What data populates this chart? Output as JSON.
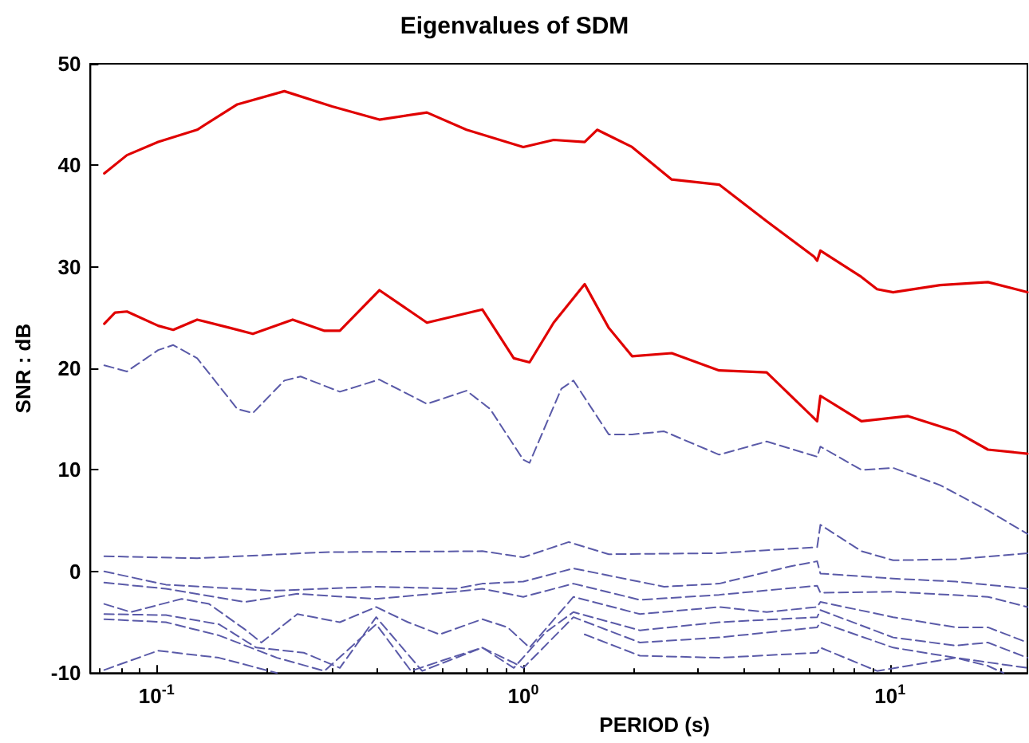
{
  "chart_data": {
    "type": "line",
    "title": "Eigenvalues of SDM",
    "xlabel": "PERIOD (s)",
    "ylabel": "SNR : dB",
    "log": "x",
    "xlim": [
      0.066,
      23.7
    ],
    "xticks": [
      {
        "value": 0.1,
        "label": "10$^{-1}$"
      },
      {
        "value": 1,
        "label": "10$^{0}$"
      },
      {
        "value": 10,
        "label": "10$^{1}$"
      }
    ],
    "ylim": [
      -10,
      50
    ],
    "yticks": [
      -10,
      0,
      10,
      20,
      30,
      40,
      50
    ],
    "grid": false,
    "marker": "none",
    "series": [
      {
        "color": "#e00000",
        "line_style": "solid",
        "x": [
          0.072,
          0.083,
          0.101,
          0.129,
          0.166,
          0.223,
          0.301,
          0.405,
          0.546,
          0.7,
          1.0,
          1.21,
          1.47,
          1.59,
          1.98,
          2.54,
          3.42,
          4.61,
          6.21,
          6.33,
          6.46,
          8.36,
          9.22,
          10.2,
          13.7,
          18.5,
          23.7
        ],
        "values": [
          39.2,
          41,
          42.3,
          43.5,
          46,
          47.3,
          45.8,
          44.5,
          45.2,
          43.5,
          41.8,
          42.5,
          42.3,
          43.5,
          41.8,
          38.6,
          38.1,
          34.5,
          31,
          30.6,
          31.6,
          29,
          27.8,
          27.5,
          28.2,
          28.5,
          27.5
        ]
      },
      {
        "color": "#e00000",
        "line_style": "solid",
        "x": [
          0.072,
          0.077,
          0.083,
          0.101,
          0.111,
          0.129,
          0.158,
          0.183,
          0.235,
          0.287,
          0.316,
          0.405,
          0.546,
          0.773,
          0.942,
          1.04,
          1.21,
          1.47,
          1.71,
          1.98,
          2.54,
          3.42,
          4.61,
          6.33,
          6.46,
          8.36,
          11.2,
          15.1,
          18.5,
          23.7
        ],
        "values": [
          24.4,
          25.5,
          25.6,
          24.2,
          23.8,
          24.8,
          24,
          23.4,
          24.8,
          23.7,
          23.7,
          27.7,
          24.5,
          25.8,
          21,
          20.6,
          24.5,
          28.3,
          24,
          21.2,
          21.5,
          19.8,
          19.6,
          14.8,
          17.3,
          14.8,
          15.3,
          13.8,
          12,
          11.6
        ]
      },
      {
        "color": "#5a5aa8",
        "line_style": "dashed",
        "x": [
          0.072,
          0.083,
          0.101,
          0.111,
          0.129,
          0.166,
          0.183,
          0.223,
          0.247,
          0.316,
          0.405,
          0.546,
          0.7,
          0.812,
          1.0,
          1.04,
          1.27,
          1.37,
          1.71,
          1.98,
          2.42,
          3.42,
          4.61,
          6.33,
          6.46,
          8.36,
          10.2,
          13.7,
          18.5,
          23.7
        ],
        "values": [
          20.3,
          19.7,
          21.8,
          22.3,
          21,
          16,
          15.6,
          18.8,
          19.2,
          17.7,
          18.9,
          16.5,
          17.8,
          16,
          11,
          10.7,
          18,
          18.8,
          13.5,
          13.5,
          13.8,
          11.5,
          12.8,
          11.3,
          12.3,
          10,
          10.2,
          8.5,
          6,
          3.7
        ]
      },
      {
        "color": "#5a5aa8",
        "line_style": "dashed",
        "x": [
          0.072,
          0.129,
          0.287,
          0.773,
          1.0,
          1.33,
          1.71,
          3.42,
          6.33,
          6.46,
          8.36,
          10.2,
          15.1,
          23.7
        ],
        "values": [
          1.5,
          1.3,
          1.9,
          2.0,
          1.4,
          2.9,
          1.7,
          1.8,
          2.4,
          4.6,
          2,
          1.1,
          1.2,
          1.8
        ]
      },
      {
        "color": "#5a5aa8",
        "line_style": "dashed",
        "x": [
          0.072,
          0.106,
          0.206,
          0.397,
          0.653,
          0.773,
          1.0,
          1.37,
          2.42,
          3.42,
          5.34,
          6.33,
          6.46,
          10.2,
          15.1,
          23.7
        ],
        "values": [
          0,
          -1.3,
          -1.9,
          -1.5,
          -1.7,
          -1.2,
          -1.0,
          0.3,
          -1.5,
          -1.2,
          0.5,
          1.0,
          -0.2,
          -0.7,
          -1.0,
          -1.7
        ]
      },
      {
        "color": "#5a5aa8",
        "line_style": "dashed",
        "x": [
          0.072,
          0.106,
          0.174,
          0.242,
          0.397,
          0.653,
          0.773,
          1.0,
          1.37,
          2.08,
          3.42,
          6.33,
          6.46,
          10.2,
          18.5,
          23.7
        ],
        "values": [
          -1.1,
          -1.7,
          -3.0,
          -2.2,
          -2.7,
          -2.0,
          -1.7,
          -2.5,
          -1.2,
          -2.8,
          -2.3,
          -1.4,
          -2.1,
          -2.0,
          -2.5,
          -3.5
        ]
      },
      {
        "color": "#5a5aa8",
        "line_style": "dashed",
        "x": [
          0.072,
          0.085,
          0.117,
          0.139,
          0.174,
          0.193,
          0.242,
          0.316,
          0.397,
          0.485,
          0.591,
          0.773,
          0.906,
          1.04,
          1.37,
          2.08,
          3.42,
          4.61,
          6.33,
          6.46,
          10.2,
          15.1,
          18.5,
          23.7
        ],
        "values": [
          -3.2,
          -4,
          -2.7,
          -3.2,
          -5.7,
          -7,
          -4.2,
          -5,
          -3.5,
          -5,
          -6.2,
          -4.7,
          -5.5,
          -7.5,
          -2.5,
          -4.2,
          -3.5,
          -4.0,
          -3.5,
          -3.0,
          -4.5,
          -5.5,
          -5.5,
          -7
        ]
      },
      {
        "color": "#5a5aa8",
        "line_style": "dashed",
        "x": [
          0.072,
          0.106,
          0.148,
          0.187,
          0.252,
          0.316,
          0.397,
          0.53,
          0.773,
          0.942,
          1.15,
          1.37,
          2.08,
          3.42,
          6.33,
          6.46,
          10.2,
          15.1,
          18.5,
          23.7
        ],
        "values": [
          -4.2,
          -4.3,
          -5.2,
          -7.5,
          -8,
          -9.5,
          -4.5,
          -9.8,
          -7.5,
          -9.5,
          -6,
          -4,
          -5.8,
          -5.0,
          -4.5,
          -3.8,
          -6.5,
          -7.3,
          -7.0,
          -8.5
        ]
      },
      {
        "color": "#5a5aa8",
        "line_style": "dashed",
        "x": [
          0.072,
          0.106,
          0.148,
          0.213,
          0.287,
          0.397,
          0.494,
          0.633,
          0.773,
          0.942,
          1.0,
          1.37,
          2.08,
          3.42,
          6.33,
          6.46,
          10.2,
          15.1,
          23.7
        ],
        "values": [
          -4.7,
          -5,
          -6.3,
          -8.5,
          -9.8,
          -5.2,
          -9.8,
          -8.5,
          -7.5,
          -9,
          -9.5,
          -4.5,
          -7,
          -6.5,
          -5.5,
          -5,
          -7.5,
          -8.5,
          -9.5
        ]
      },
      {
        "color": "#5a5aa8",
        "line_style": "dashed",
        "x": [
          0.072,
          0.101,
          0.148,
          0.213,
          1.27,
          1.47,
          2.08,
          3.42,
          6.33,
          6.46,
          9.22,
          15.1,
          18.5,
          20.4
        ],
        "values": [
          -9.7,
          -7.8,
          -8.5,
          -10,
          null,
          -6.2,
          -8.3,
          -8.5,
          -8.0,
          -7.5,
          -9.8,
          -8.5,
          -9.3,
          -10
        ]
      }
    ]
  }
}
